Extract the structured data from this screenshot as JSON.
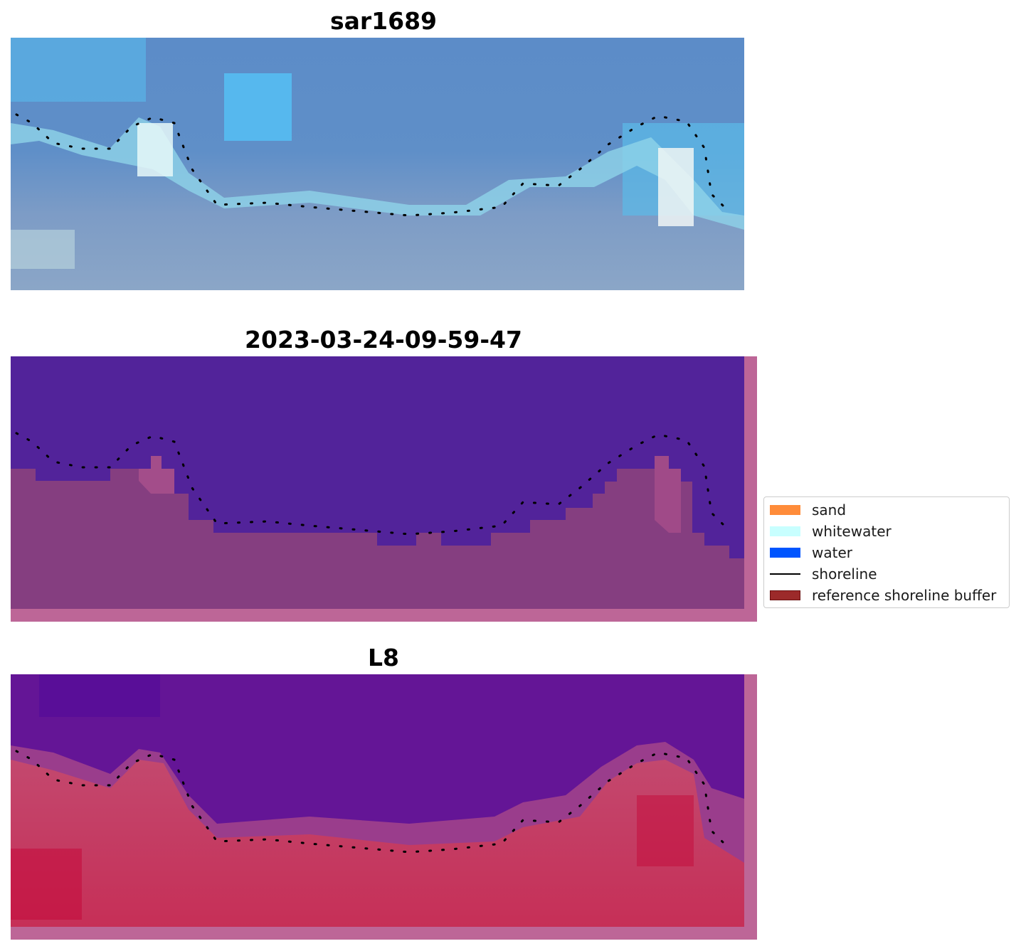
{
  "panels": [
    {
      "title": "sar1689"
    },
    {
      "title": "2023-03-24-09-59-47"
    },
    {
      "title": "L8"
    }
  ],
  "legend": {
    "items": [
      {
        "label": "sand",
        "color": "#ff8c3a",
        "kind": "patch"
      },
      {
        "label": "whitewater",
        "color": "#c8ffff",
        "kind": "patch"
      },
      {
        "label": "water",
        "color": "#0055ff",
        "kind": "patch"
      },
      {
        "label": "shoreline",
        "color": "#000000",
        "kind": "line"
      },
      {
        "label": "reference shoreline buffer",
        "color": "#9c2a2a",
        "kind": "patch"
      }
    ]
  },
  "colors": {
    "rgb_water_top": "#5b8ac5",
    "rgb_water_cyan": "#55c3f5",
    "rgb_land": "#7c9cc4",
    "class_water": "#52239a",
    "class_land": "#853e80",
    "class_buffer_edge": "#bd6697",
    "index_water": "#641596",
    "index_land": "#c7345f",
    "index_border": "#bd6697"
  }
}
